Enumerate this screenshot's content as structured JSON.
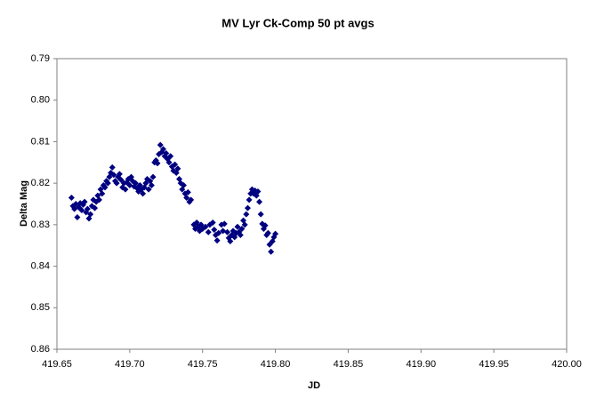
{
  "chart_data": {
    "type": "scatter",
    "title": "MV Lyr Ck-Comp 50 pt avgs",
    "x_label": "JD",
    "y_label": "Delta Mag",
    "xlim": [
      419.65,
      420.0
    ],
    "xticks": [
      419.65,
      {
        "value": 419.7,
        "label": "419.70"
      },
      419.75,
      {
        "value": 419.8,
        "label": "419.80"
      },
      419.85,
      {
        "value": 419.9,
        "label": "419.90"
      },
      419.95,
      {
        "value": 420.0,
        "label": "420.00"
      }
    ],
    "ylim": [
      0.79,
      0.86
    ],
    "y_reversed": true,
    "yticks": [
      0.79,
      {
        "value": 0.8,
        "label": "0.80"
      },
      0.81,
      0.82,
      0.83,
      0.84,
      0.85,
      0.86
    ],
    "grid": false,
    "color": "#000080",
    "x": [
      419.66,
      419.661,
      419.662,
      419.663,
      419.664,
      419.665,
      419.666,
      419.667,
      419.668,
      419.669,
      419.67,
      419.671,
      419.672,
      419.673,
      419.674,
      419.675,
      419.676,
      419.677,
      419.678,
      419.679,
      419.68,
      419.681,
      419.682,
      419.683,
      419.684,
      419.685,
      419.686,
      419.687,
      419.688,
      419.689,
      419.69,
      419.691,
      419.692,
      419.693,
      419.694,
      419.695,
      419.696,
      419.697,
      419.698,
      419.699,
      419.7,
      419.701,
      419.702,
      419.703,
      419.704,
      419.705,
      419.706,
      419.707,
      419.708,
      419.709,
      419.71,
      419.711,
      419.712,
      419.713,
      419.714,
      419.715,
      419.716,
      419.717,
      419.718,
      419.719,
      419.72,
      419.721,
      419.722,
      419.723,
      419.724,
      419.725,
      419.726,
      419.727,
      419.728,
      419.729,
      419.73,
      419.731,
      419.732,
      419.733,
      419.734,
      419.735,
      419.736,
      419.737,
      419.738,
      419.739,
      419.74,
      419.741,
      419.742,
      419.744,
      419.745,
      419.746,
      419.747,
      419.748,
      419.749,
      419.75,
      419.752,
      419.754,
      419.755,
      419.757,
      419.758,
      419.759,
      419.76,
      419.761,
      419.763,
      419.764,
      419.765,
      419.767,
      419.768,
      419.769,
      419.77,
      419.771,
      419.772,
      419.773,
      419.774,
      419.775,
      419.776,
      419.777,
      419.778,
      419.779,
      419.78,
      419.781,
      419.782,
      419.783,
      419.784,
      419.785,
      419.786,
      419.787,
      419.788,
      419.789,
      419.79,
      419.791,
      419.792,
      419.793,
      419.794,
      419.795,
      419.796,
      419.797,
      419.798,
      419.799,
      419.8
    ],
    "values": [
      0.8235,
      0.8255,
      0.8262,
      0.825,
      0.8282,
      0.8258,
      0.8248,
      0.8265,
      0.8252,
      0.8245,
      0.827,
      0.8262,
      0.8285,
      0.8275,
      0.8255,
      0.824,
      0.826,
      0.8245,
      0.823,
      0.824,
      0.8215,
      0.8225,
      0.8205,
      0.821,
      0.8195,
      0.82,
      0.8185,
      0.8175,
      0.8162,
      0.818,
      0.8195,
      0.82,
      0.8185,
      0.8178,
      0.8192,
      0.821,
      0.82,
      0.8215,
      0.8198,
      0.819,
      0.8205,
      0.8185,
      0.8195,
      0.8208,
      0.82,
      0.8212,
      0.822,
      0.8205,
      0.8215,
      0.8225,
      0.821,
      0.82,
      0.819,
      0.8215,
      0.8195,
      0.8205,
      0.8185,
      0.815,
      0.8145,
      0.8152,
      0.813,
      0.8108,
      0.8125,
      0.8118,
      0.8135,
      0.8128,
      0.8142,
      0.815,
      0.8135,
      0.816,
      0.817,
      0.8155,
      0.8175,
      0.8165,
      0.819,
      0.82,
      0.8215,
      0.8205,
      0.8225,
      0.8235,
      0.8222,
      0.8245,
      0.824,
      0.83,
      0.831,
      0.8295,
      0.8305,
      0.8315,
      0.83,
      0.831,
      0.8305,
      0.8318,
      0.83,
      0.8295,
      0.8312,
      0.8325,
      0.8338,
      0.832,
      0.83,
      0.8315,
      0.8298,
      0.8318,
      0.8332,
      0.834,
      0.8325,
      0.8315,
      0.833,
      0.832,
      0.8305,
      0.8318,
      0.8325,
      0.831,
      0.829,
      0.83,
      0.8275,
      0.826,
      0.824,
      0.8225,
      0.8215,
      0.8225,
      0.8218,
      0.823,
      0.822,
      0.8245,
      0.8275,
      0.8298,
      0.831,
      0.8302,
      0.8325,
      0.832,
      0.8348,
      0.8365,
      0.834,
      0.833,
      0.8322
    ]
  }
}
